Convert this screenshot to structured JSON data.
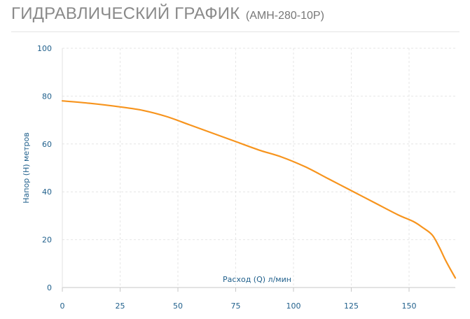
{
  "header": {
    "title": "ГИДРАВЛИЧЕСКИЙ ГРАФИК",
    "subtitle": "(АМН-280-10Р)"
  },
  "chart_data": {
    "type": "line",
    "title": "ГИДРАВЛИЧЕСКИЙ ГРАФИК (АМН-280-10Р)",
    "xlabel": "Расход (Q) л/мин",
    "ylabel": "Напор (Н) метров",
    "xlim": [
      0,
      170
    ],
    "ylim": [
      0,
      100
    ],
    "x_ticks": [
      0,
      25,
      50,
      75,
      100,
      125,
      150
    ],
    "y_ticks": [
      0,
      20,
      40,
      60,
      80,
      100
    ],
    "grid": true,
    "legend": "none",
    "series": [
      {
        "color": "#f7941d",
        "x": [
          0,
          12,
          25,
          35,
          45,
          55,
          65,
          75,
          85,
          95,
          105,
          115,
          125,
          135,
          145,
          152,
          156,
          160,
          163,
          166,
          170
        ],
        "y": [
          78,
          77,
          75.5,
          74,
          71.5,
          68,
          64.5,
          61,
          57.5,
          54.5,
          50.5,
          45.5,
          40.5,
          35.5,
          30.5,
          27.5,
          25,
          22,
          17,
          11,
          4
        ]
      }
    ]
  }
}
